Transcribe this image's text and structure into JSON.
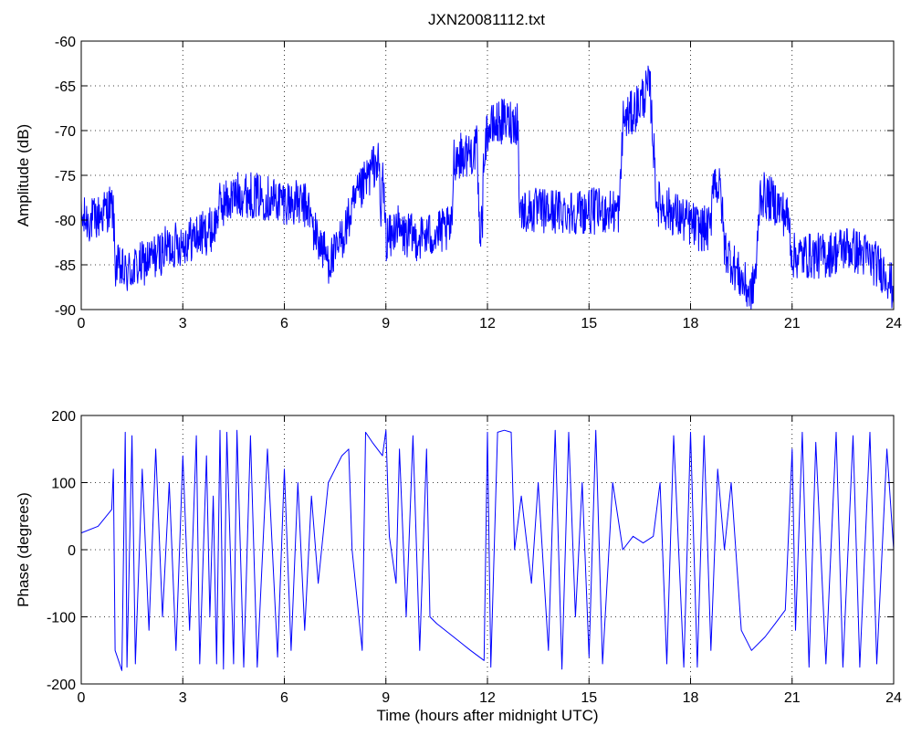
{
  "figure_title": "JXN20081112.txt",
  "colors": {
    "series": "#0000ff",
    "axes": "#000000",
    "background": "#ffffff"
  },
  "chart_data": [
    {
      "type": "line",
      "title": "JXN20081112.txt",
      "xlabel": "",
      "ylabel": "Amplitude (dB)",
      "xlim": [
        0,
        24
      ],
      "ylim": [
        -90,
        -60
      ],
      "xticks": [
        0,
        3,
        6,
        9,
        12,
        15,
        18,
        21,
        24
      ],
      "yticks": [
        -90,
        -85,
        -80,
        -75,
        -70,
        -65,
        -60
      ],
      "grid": true,
      "noise": 2.6,
      "series": [
        {
          "values": [
            [
              0,
              -80
            ],
            [
              0.4,
              -80
            ],
            [
              0.85,
              -78.5
            ],
            [
              0.95,
              -79
            ],
            [
              1.0,
              -85
            ],
            [
              1.3,
              -86
            ],
            [
              2.0,
              -84.5
            ],
            [
              2.6,
              -83
            ],
            [
              3.3,
              -82
            ],
            [
              3.9,
              -81
            ],
            [
              4.0,
              -80
            ],
            [
              4.05,
              -78.5
            ],
            [
              4.7,
              -77
            ],
            [
              5.5,
              -77.5
            ],
            [
              6.2,
              -78
            ],
            [
              6.7,
              -78.5
            ],
            [
              6.85,
              -81
            ],
            [
              7.3,
              -84.5
            ],
            [
              7.5,
              -84
            ],
            [
              7.9,
              -80
            ],
            [
              8.1,
              -78
            ],
            [
              8.7,
              -73.5
            ],
            [
              8.8,
              -74
            ],
            [
              8.85,
              -81
            ],
            [
              8.9,
              -74
            ],
            [
              9.0,
              -82
            ],
            [
              9.2,
              -82
            ],
            [
              9.3,
              -80
            ],
            [
              9.4,
              -81.5
            ],
            [
              9.9,
              -82
            ],
            [
              10.5,
              -81.5
            ],
            [
              10.95,
              -81
            ],
            [
              11.0,
              -73
            ],
            [
              11.5,
              -72.5
            ],
            [
              11.7,
              -72
            ],
            [
              11.75,
              -81
            ],
            [
              11.85,
              -80
            ],
            [
              11.9,
              -72
            ],
            [
              12.0,
              -70
            ],
            [
              12.4,
              -69
            ],
            [
              12.9,
              -69
            ],
            [
              12.95,
              -79
            ],
            [
              13.5,
              -79
            ],
            [
              14.5,
              -79
            ],
            [
              15.9,
              -79
            ],
            [
              16.0,
              -69
            ],
            [
              16.3,
              -68
            ],
            [
              16.8,
              -65
            ],
            [
              17.0,
              -78
            ],
            [
              17.8,
              -80
            ],
            [
              18.3,
              -81
            ],
            [
              18.6,
              -81
            ],
            [
              18.65,
              -75
            ],
            [
              18.9,
              -77
            ],
            [
              19.0,
              -83
            ],
            [
              19.4,
              -86
            ],
            [
              19.8,
              -88.5
            ],
            [
              19.95,
              -85
            ],
            [
              20.05,
              -77
            ],
            [
              20.5,
              -78
            ],
            [
              20.9,
              -80
            ],
            [
              21.0,
              -84
            ],
            [
              22.0,
              -84
            ],
            [
              22.6,
              -83
            ],
            [
              23.2,
              -84
            ],
            [
              23.8,
              -86
            ],
            [
              24.0,
              -88
            ]
          ]
        }
      ]
    },
    {
      "type": "line",
      "title": "",
      "xlabel": "Time (hours after midnight UTC)",
      "ylabel": "Phase (degrees)",
      "xlim": [
        0,
        24
      ],
      "ylim": [
        -200,
        200
      ],
      "xticks": [
        0,
        3,
        6,
        9,
        12,
        15,
        18,
        21,
        24
      ],
      "yticks": [
        -200,
        -100,
        0,
        100,
        200
      ],
      "grid": true,
      "noise": 0,
      "series": [
        {
          "values": [
            [
              0,
              25
            ],
            [
              0.5,
              35
            ],
            [
              0.9,
              60
            ],
            [
              0.95,
              120
            ],
            [
              1.0,
              -150
            ],
            [
              1.2,
              -180
            ],
            [
              1.3,
              175
            ],
            [
              1.35,
              -175
            ],
            [
              1.5,
              170
            ],
            [
              1.6,
              -170
            ],
            [
              1.8,
              120
            ],
            [
              2.0,
              -120
            ],
            [
              2.2,
              150
            ],
            [
              2.4,
              -100
            ],
            [
              2.6,
              100
            ],
            [
              2.8,
              -150
            ],
            [
              3.0,
              140
            ],
            [
              3.2,
              -120
            ],
            [
              3.4,
              170
            ],
            [
              3.5,
              -170
            ],
            [
              3.7,
              140
            ],
            [
              3.8,
              -100
            ],
            [
              3.9,
              80
            ],
            [
              4.0,
              -170
            ],
            [
              4.1,
              178
            ],
            [
              4.2,
              -178
            ],
            [
              4.3,
              175
            ],
            [
              4.5,
              -170
            ],
            [
              4.6,
              178
            ],
            [
              4.8,
              -175
            ],
            [
              5.0,
              170
            ],
            [
              5.2,
              -175
            ],
            [
              5.5,
              150
            ],
            [
              5.8,
              -160
            ],
            [
              6.0,
              120
            ],
            [
              6.2,
              -150
            ],
            [
              6.4,
              100
            ],
            [
              6.6,
              -120
            ],
            [
              6.8,
              80
            ],
            [
              7.0,
              -50
            ],
            [
              7.3,
              100
            ],
            [
              7.5,
              120
            ],
            [
              7.7,
              140
            ],
            [
              7.9,
              150
            ],
            [
              8.0,
              0
            ],
            [
              8.3,
              -150
            ],
            [
              8.4,
              175
            ],
            [
              8.6,
              160
            ],
            [
              8.9,
              140
            ],
            [
              9.0,
              178
            ],
            [
              9.1,
              20
            ],
            [
              9.3,
              -50
            ],
            [
              9.4,
              150
            ],
            [
              9.6,
              -100
            ],
            [
              9.8,
              170
            ],
            [
              10.0,
              -150
            ],
            [
              10.2,
              150
            ],
            [
              10.3,
              -100
            ],
            [
              10.5,
              -110
            ],
            [
              11.0,
              -130
            ],
            [
              11.5,
              -150
            ],
            [
              11.9,
              -165
            ],
            [
              12.0,
              175
            ],
            [
              12.1,
              -175
            ],
            [
              12.3,
              175
            ],
            [
              12.5,
              178
            ],
            [
              12.7,
              175
            ],
            [
              12.8,
              0
            ],
            [
              13.0,
              80
            ],
            [
              13.3,
              -50
            ],
            [
              13.5,
              100
            ],
            [
              13.8,
              -150
            ],
            [
              14.0,
              178
            ],
            [
              14.2,
              -178
            ],
            [
              14.4,
              175
            ],
            [
              14.6,
              -100
            ],
            [
              14.8,
              100
            ],
            [
              15.0,
              -160
            ],
            [
              15.2,
              178
            ],
            [
              15.4,
              -170
            ],
            [
              15.7,
              100
            ],
            [
              16.0,
              0
            ],
            [
              16.3,
              20
            ],
            [
              16.6,
              10
            ],
            [
              16.9,
              20
            ],
            [
              17.1,
              100
            ],
            [
              17.3,
              -170
            ],
            [
              17.5,
              170
            ],
            [
              17.8,
              -175
            ],
            [
              18.0,
              175
            ],
            [
              18.2,
              -175
            ],
            [
              18.4,
              170
            ],
            [
              18.6,
              -150
            ],
            [
              18.8,
              120
            ],
            [
              19.0,
              0
            ],
            [
              19.2,
              100
            ],
            [
              19.5,
              -120
            ],
            [
              19.8,
              -150
            ],
            [
              20.2,
              -130
            ],
            [
              20.5,
              -110
            ],
            [
              20.8,
              -90
            ],
            [
              21.0,
              150
            ],
            [
              21.1,
              -120
            ],
            [
              21.3,
              175
            ],
            [
              21.5,
              -175
            ],
            [
              21.7,
              160
            ],
            [
              22.0,
              -170
            ],
            [
              22.3,
              175
            ],
            [
              22.5,
              -175
            ],
            [
              22.8,
              170
            ],
            [
              23.0,
              -175
            ],
            [
              23.3,
              175
            ],
            [
              23.5,
              -170
            ],
            [
              23.8,
              150
            ],
            [
              24.0,
              0
            ]
          ]
        }
      ]
    }
  ]
}
